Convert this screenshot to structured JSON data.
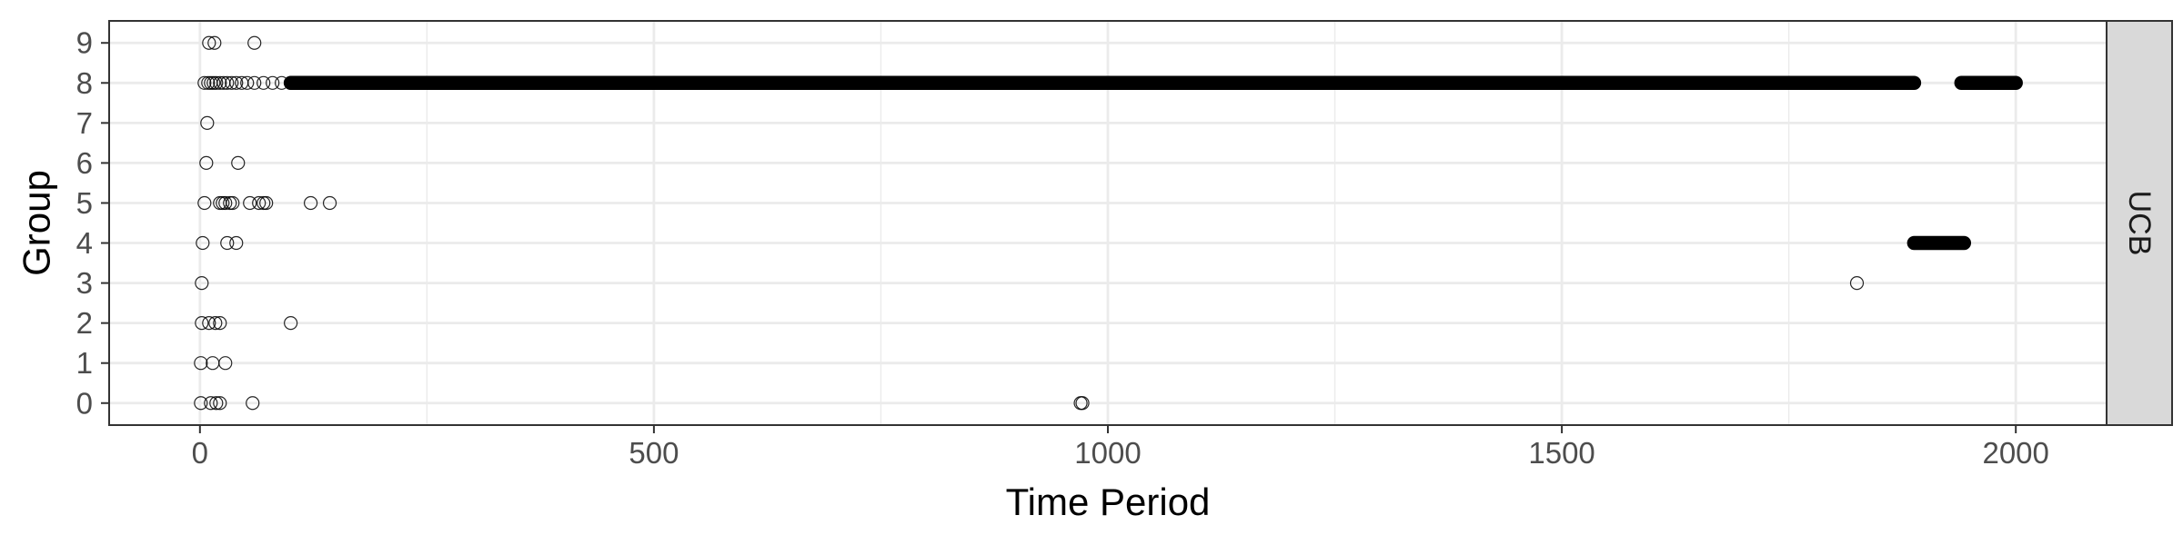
{
  "chart_data": {
    "type": "scatter",
    "title": "",
    "xlabel": "Time Period",
    "ylabel": "Group",
    "facet_label": "UCB",
    "xlim": [
      -100,
      2100
    ],
    "ylim": [
      -0.55,
      9.55
    ],
    "x_ticks": [
      0,
      500,
      1000,
      1500,
      2000
    ],
    "x_tick_labels": [
      "0",
      "500",
      "1000",
      "1500",
      "2000"
    ],
    "x_minor_ticks": [
      250,
      750,
      1250,
      1750
    ],
    "y_ticks": [
      0,
      1,
      2,
      3,
      4,
      5,
      6,
      7,
      8,
      9
    ],
    "y_tick_labels": [
      "0",
      "1",
      "2",
      "3",
      "4",
      "5",
      "6",
      "7",
      "8",
      "9"
    ],
    "grid": true,
    "theme": "bw",
    "marker": "open-circle",
    "points": [
      {
        "group": 9,
        "x": [
          10,
          16,
          60
        ]
      },
      {
        "group": 8,
        "x": [
          5,
          9,
          12,
          15,
          18,
          22,
          26,
          30,
          35,
          40,
          46,
          52,
          60,
          70,
          80,
          90,
          100
        ]
      },
      {
        "group": 7,
        "x": [
          8
        ]
      },
      {
        "group": 6,
        "x": [
          7,
          42
        ]
      },
      {
        "group": 5,
        "x": [
          5,
          22,
          25,
          28,
          33,
          36,
          55,
          65,
          70,
          73,
          122,
          143
        ]
      },
      {
        "group": 4,
        "x": [
          3,
          30,
          40
        ]
      },
      {
        "group": 3,
        "x": [
          2,
          1825
        ]
      },
      {
        "group": 2,
        "x": [
          2,
          10,
          17,
          22,
          100
        ]
      },
      {
        "group": 1,
        "x": [
          1,
          14,
          28
        ]
      },
      {
        "group": 0,
        "x": [
          1,
          12,
          18,
          22,
          58,
          970,
          972
        ]
      }
    ],
    "dense_segments": [
      {
        "group": 8,
        "x_start": 100,
        "x_end": 1888
      },
      {
        "group": 8,
        "x_start": 1940,
        "x_end": 2000
      },
      {
        "group": 4,
        "x_start": 1888,
        "x_end": 1943
      }
    ]
  }
}
